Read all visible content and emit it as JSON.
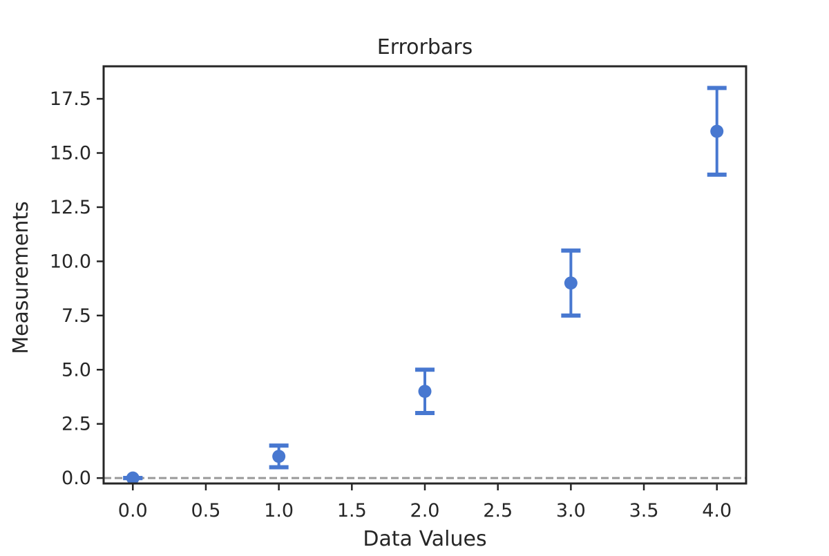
{
  "chart_data": {
    "type": "scatter",
    "title": "Errorbars",
    "xlabel": "Data Values",
    "ylabel": "Measurements",
    "xlim": [
      -0.2,
      4.2
    ],
    "ylim": [
      -0.25,
      19.0
    ],
    "xticks": [
      0.0,
      0.5,
      1.0,
      1.5,
      2.0,
      2.5,
      3.0,
      3.5,
      4.0
    ],
    "xtick_labels": [
      "0.0",
      "0.5",
      "1.0",
      "1.5",
      "2.0",
      "2.5",
      "3.0",
      "3.5",
      "4.0"
    ],
    "yticks": [
      0.0,
      2.5,
      5.0,
      7.5,
      10.0,
      12.5,
      15.0,
      17.5
    ],
    "ytick_labels": [
      "0.0",
      "2.5",
      "5.0",
      "7.5",
      "10.0",
      "12.5",
      "15.0",
      "17.5"
    ],
    "grid": false,
    "series": [
      {
        "x": [
          0,
          1,
          2,
          3,
          4
        ],
        "y": [
          0,
          1,
          4,
          9,
          16
        ],
        "yerr": [
          0.0,
          0.5,
          1.0,
          1.5,
          2.0
        ],
        "color": "#4878d0"
      }
    ],
    "reference_line": {
      "y": 0,
      "color": "#999999",
      "style": "dashed"
    }
  }
}
